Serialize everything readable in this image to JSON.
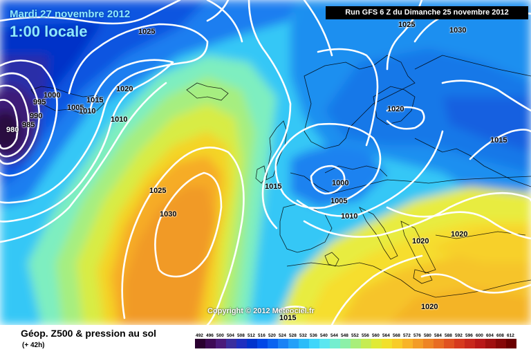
{
  "header": {
    "date": "Mardi 27 novembre 2012",
    "time": "1:00 locale",
    "run": "Run GFS 6 Z du Dimanche 25 novembre 2012"
  },
  "copyright": "Copyright © 2012 Meteociel.fr",
  "footer": {
    "title": "Géop. Z500 & pression au sol",
    "subtitle": "(+ 42h)"
  },
  "legend": {
    "labels": [
      "492",
      "496",
      "500",
      "504",
      "508",
      "512",
      "516",
      "520",
      "524",
      "528",
      "532",
      "536",
      "540",
      "544",
      "548",
      "552",
      "556",
      "560",
      "564",
      "568",
      "572",
      "576",
      "580",
      "584",
      "588",
      "592",
      "596",
      "600",
      "604",
      "608",
      "612"
    ],
    "colors": [
      "#2a0030",
      "#3d0a55",
      "#4a1a7a",
      "#3a2e9e",
      "#1f2fbf",
      "#0033cc",
      "#0047e6",
      "#0a63f0",
      "#1a82f5",
      "#24a0f8",
      "#2bbcf8",
      "#3fd6fa",
      "#5ae6f0",
      "#74eecf",
      "#8cf0a8",
      "#a8ee7a",
      "#c6ec52",
      "#e0ea36",
      "#f2e02a",
      "#f8cc28",
      "#f8b428",
      "#f39c26",
      "#ee8424",
      "#e86c22",
      "#e05220",
      "#d63a1e",
      "#c8281c",
      "#b81818",
      "#a01010",
      "#860808",
      "#6a0000"
    ]
  },
  "map": {
    "isobars": [
      {
        "label": "1025",
        "color": "#000000"
      },
      {
        "label": "1000",
        "color": "#000000"
      },
      {
        "label": "995",
        "color": "#000000"
      },
      {
        "label": "990",
        "color": "#000000"
      },
      {
        "label": "985",
        "color": "#000000"
      },
      {
        "label": "980",
        "color": "#ffffff"
      },
      {
        "label": "1015",
        "color": "#000000"
      },
      {
        "label": "1005",
        "color": "#000000"
      },
      {
        "label": "1010",
        "color": "#000000"
      },
      {
        "label": "1010",
        "color": "#000000"
      },
      {
        "label": "1020",
        "color": "#000000"
      },
      {
        "label": "1025",
        "color": "#000000"
      },
      {
        "label": "1030",
        "color": "#000000"
      },
      {
        "label": "1025",
        "color": "#000000"
      },
      {
        "label": "1030",
        "color": "#000000"
      },
      {
        "label": "1020",
        "color": "#000000"
      },
      {
        "label": "1015",
        "color": "#000000"
      },
      {
        "label": "1015",
        "color": "#000000"
      },
      {
        "label": "1000",
        "color": "#000000"
      },
      {
        "label": "1005",
        "color": "#000000"
      },
      {
        "label": "1010",
        "color": "#000000"
      },
      {
        "label": "1020",
        "color": "#000000"
      },
      {
        "label": "1020",
        "color": "#000000"
      },
      {
        "label": "1020",
        "color": "#000000"
      },
      {
        "label": "1015",
        "color": "#000000"
      }
    ]
  }
}
